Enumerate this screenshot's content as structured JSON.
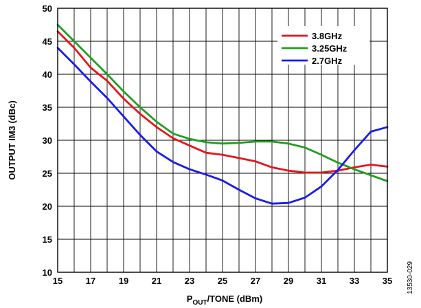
{
  "chart_data": {
    "type": "line",
    "title": "",
    "xlabel_main": "P",
    "xlabel_sub": "OUT",
    "xlabel_rest": "/TONE (dBm)",
    "ylabel": "OUTPUT IM3 (dBc)",
    "xlim": [
      15,
      35
    ],
    "ylim": [
      10,
      50
    ],
    "xticks": [
      15,
      17,
      19,
      21,
      23,
      25,
      27,
      29,
      31,
      33,
      35
    ],
    "yticks": [
      10,
      15,
      20,
      25,
      30,
      35,
      40,
      45,
      50
    ],
    "grid": true,
    "legend_position": "top-right",
    "series": [
      {
        "name": "3.8GHz",
        "color": "#e8141c",
        "x": [
          15,
          16,
          17,
          18,
          19,
          20,
          21,
          22,
          23,
          24,
          25,
          26,
          27,
          28,
          29,
          30,
          31,
          32,
          33,
          34,
          35
        ],
        "y": [
          46.5,
          44.0,
          41.0,
          39.0,
          36.3,
          34.0,
          32.0,
          30.3,
          29.2,
          28.1,
          27.8,
          27.3,
          26.8,
          25.9,
          25.4,
          25.1,
          25.1,
          25.4,
          25.9,
          26.3,
          26.0
        ]
      },
      {
        "name": "3.25GHz",
        "color": "#1e9e1e",
        "x": [
          15,
          16,
          17,
          18,
          19,
          20,
          21,
          22,
          23,
          24,
          25,
          26,
          27,
          28,
          29,
          30,
          31,
          32,
          33,
          34,
          35
        ],
        "y": [
          47.5,
          45.0,
          42.5,
          40.0,
          37.4,
          35.0,
          32.8,
          31.0,
          30.2,
          29.7,
          29.5,
          29.6,
          29.8,
          29.8,
          29.5,
          28.9,
          27.8,
          26.6,
          25.6,
          24.7,
          23.8
        ]
      },
      {
        "name": "2.7GHz",
        "color": "#1a1aee",
        "x": [
          15,
          16,
          17,
          18,
          19,
          20,
          21,
          22,
          23,
          24,
          25,
          26,
          27,
          28,
          29,
          30,
          31,
          32,
          33,
          34,
          35
        ],
        "y": [
          44.0,
          41.5,
          38.9,
          36.4,
          33.6,
          30.8,
          28.3,
          26.7,
          25.6,
          24.8,
          23.9,
          22.5,
          21.2,
          20.4,
          20.5,
          21.3,
          23.0,
          25.5,
          28.5,
          31.3,
          32.0
        ]
      }
    ]
  },
  "figure_id": "13530-029"
}
